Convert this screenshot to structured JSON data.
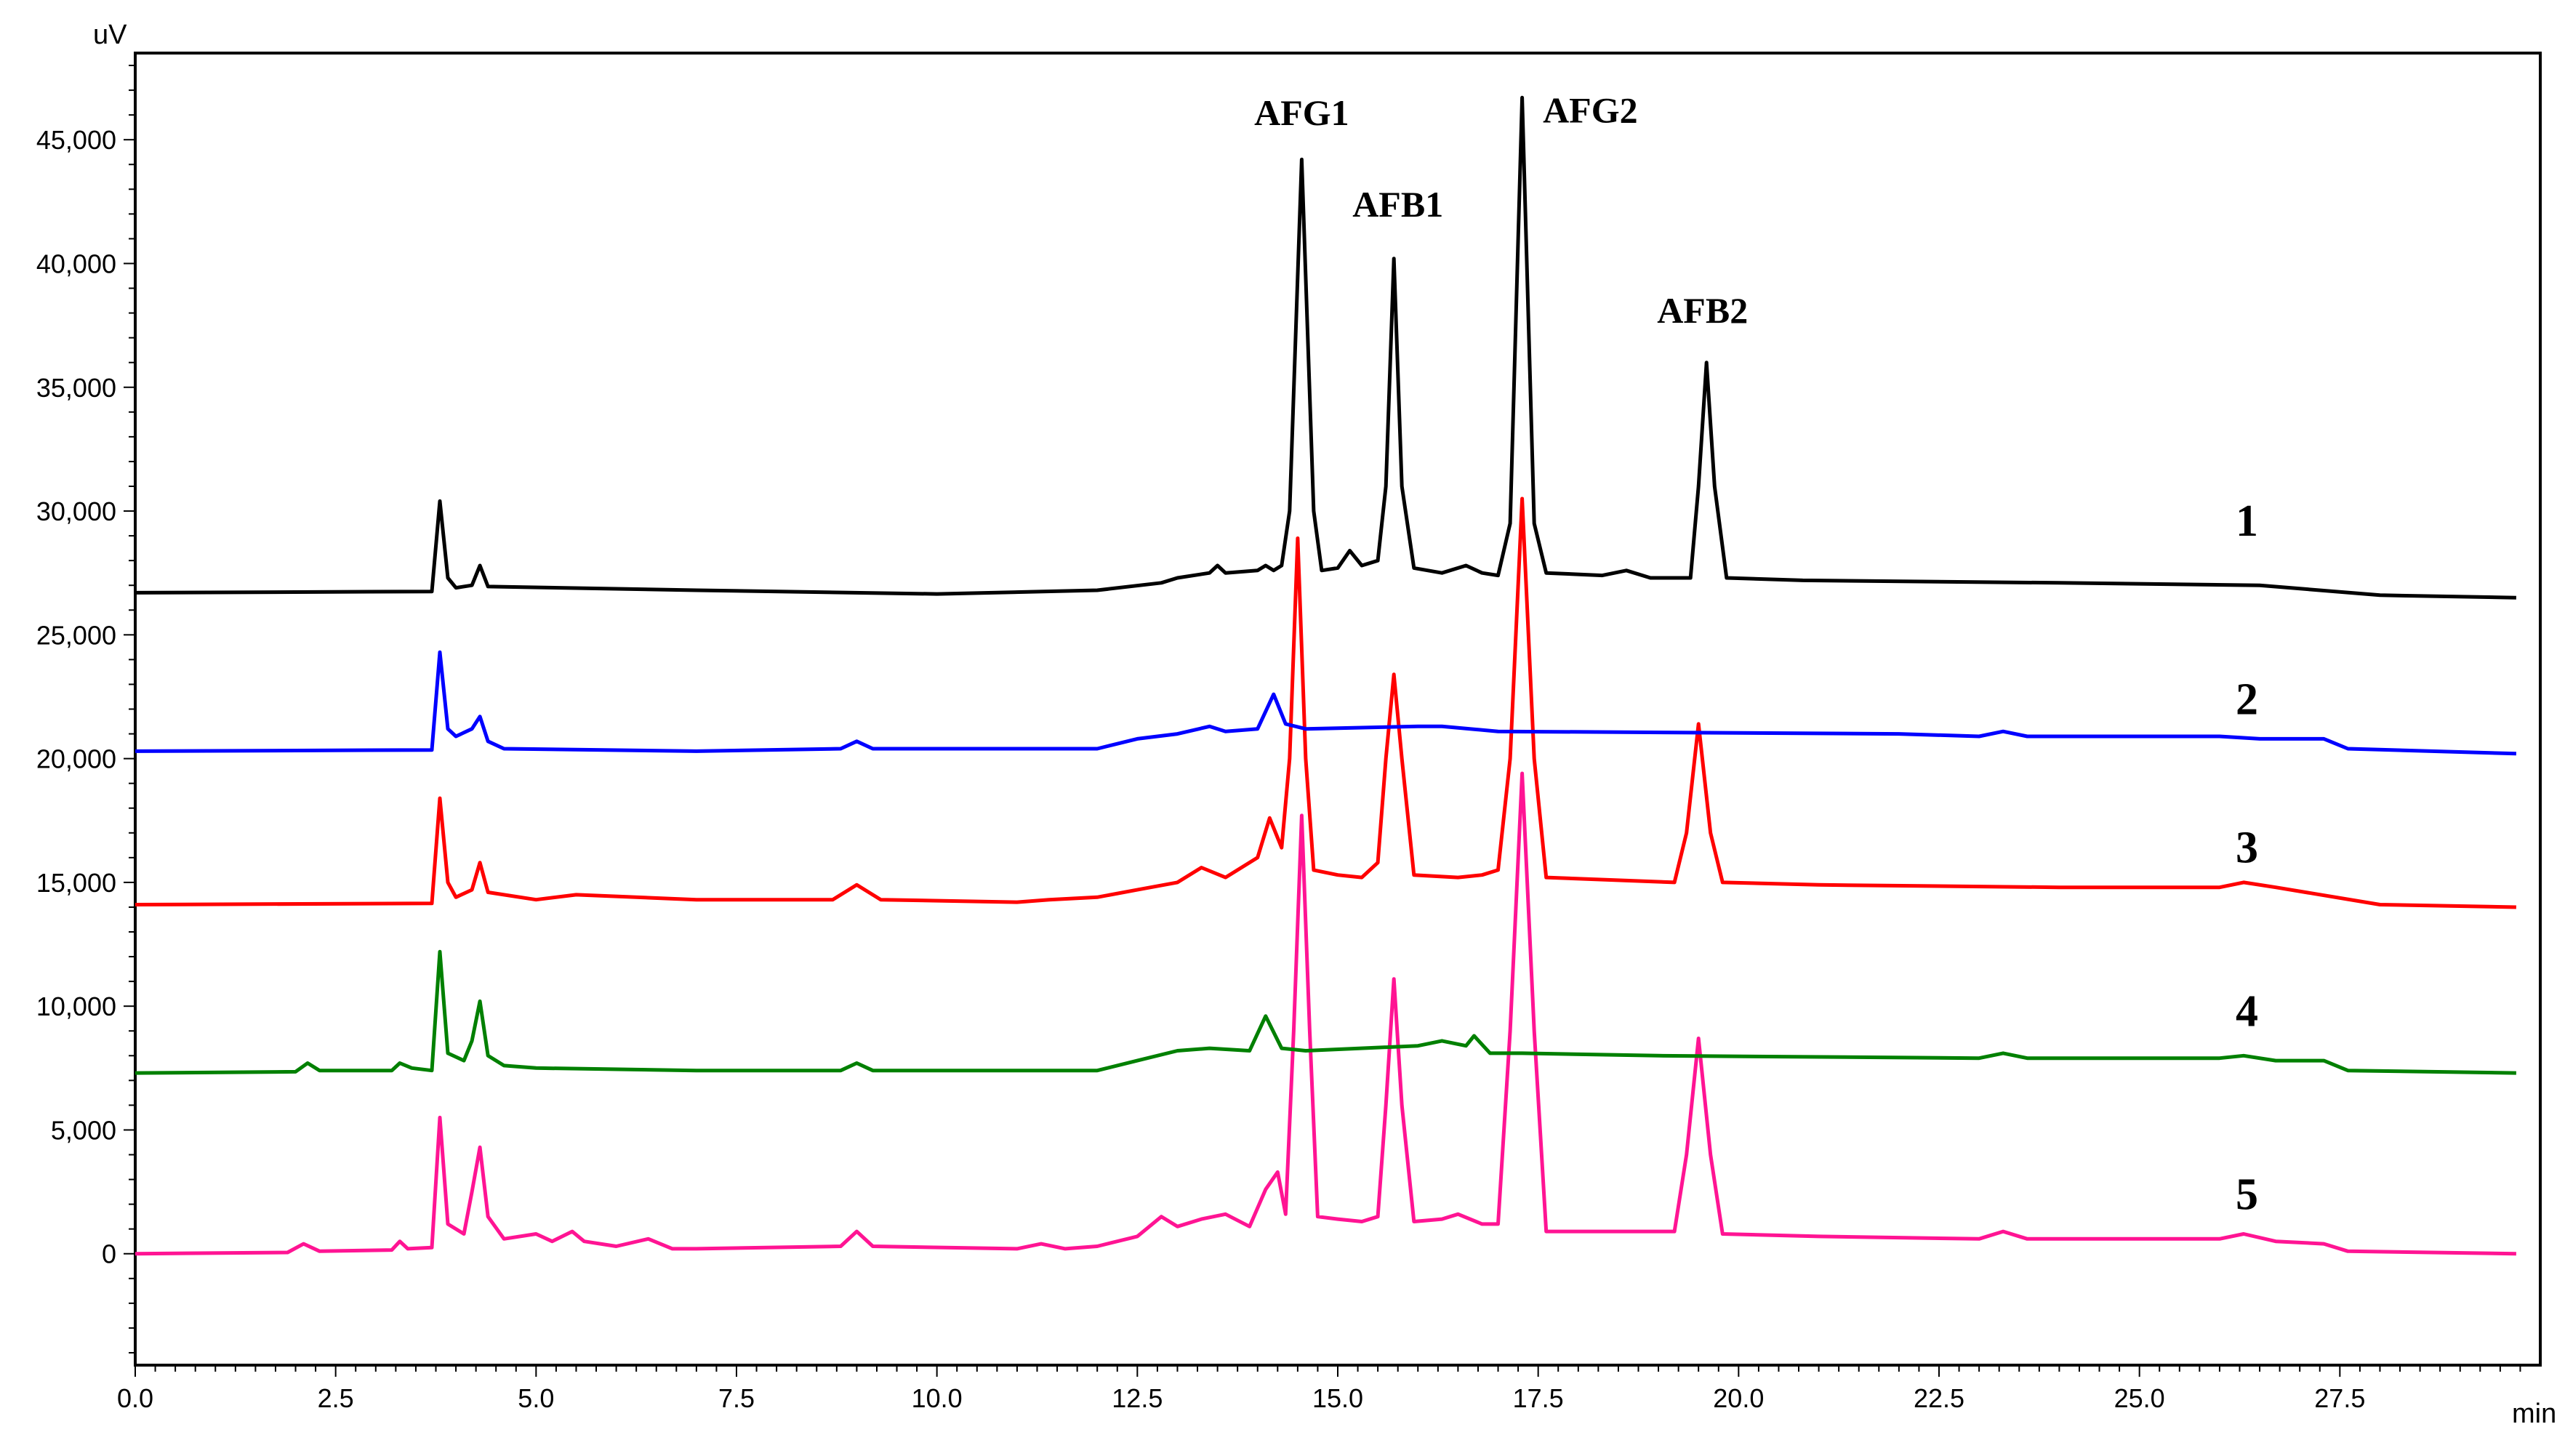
{
  "chart_data": {
    "type": "line",
    "ylabel": "uV",
    "xlabel": "min",
    "xlim": [
      0,
      30
    ],
    "ylim": [
      -4500,
      48500
    ],
    "x_ticks": [
      "0.0",
      "2.5",
      "5.0",
      "7.5",
      "10.0",
      "12.5",
      "15.0",
      "17.5",
      "20.0",
      "22.5",
      "25.0",
      "27.5"
    ],
    "y_ticks": [
      "0",
      "5,000",
      "10,000",
      "15,000",
      "20,000",
      "25,000",
      "30,000",
      "35,000",
      "40,000",
      "45,000"
    ],
    "grid": false,
    "peak_annotations": [
      {
        "text": "AFG1",
        "x": 14.55,
        "y": 45600
      },
      {
        "text": "AFB1",
        "x": 15.75,
        "y": 41900
      },
      {
        "text": "AFG2",
        "x": 18.15,
        "y": 45700
      },
      {
        "text": "AFB2",
        "x": 19.55,
        "y": 37600
      }
    ],
    "series": [
      {
        "name": "1",
        "color": "#000000",
        "label_x": 26.2,
        "label_y": 29000,
        "points": [
          [
            0,
            26700
          ],
          [
            3.7,
            26750
          ],
          [
            3.8,
            30400
          ],
          [
            3.9,
            27300
          ],
          [
            4.0,
            26900
          ],
          [
            4.2,
            27000
          ],
          [
            4.3,
            27800
          ],
          [
            4.4,
            26950
          ],
          [
            7,
            26800
          ],
          [
            10,
            26650
          ],
          [
            12,
            26800
          ],
          [
            12.8,
            27100
          ],
          [
            13.0,
            27300
          ],
          [
            13.4,
            27500
          ],
          [
            13.5,
            27800
          ],
          [
            13.6,
            27500
          ],
          [
            14.0,
            27600
          ],
          [
            14.1,
            27800
          ],
          [
            14.2,
            27600
          ],
          [
            14.3,
            27800
          ],
          [
            14.4,
            30000
          ],
          [
            14.55,
            44200
          ],
          [
            14.7,
            30000
          ],
          [
            14.8,
            27600
          ],
          [
            15.0,
            27700
          ],
          [
            15.15,
            28400
          ],
          [
            15.3,
            27800
          ],
          [
            15.5,
            28000
          ],
          [
            15.6,
            31000
          ],
          [
            15.7,
            40200
          ],
          [
            15.8,
            31000
          ],
          [
            15.95,
            27700
          ],
          [
            16.3,
            27500
          ],
          [
            16.6,
            27800
          ],
          [
            16.8,
            27500
          ],
          [
            17.0,
            27400
          ],
          [
            17.15,
            29500
          ],
          [
            17.3,
            46700
          ],
          [
            17.45,
            29500
          ],
          [
            17.6,
            27500
          ],
          [
            18.3,
            27400
          ],
          [
            18.6,
            27600
          ],
          [
            18.9,
            27300
          ],
          [
            19.4,
            27300
          ],
          [
            19.5,
            31000
          ],
          [
            19.6,
            36000
          ],
          [
            19.7,
            31000
          ],
          [
            19.85,
            27300
          ],
          [
            20.8,
            27200
          ],
          [
            24,
            27100
          ],
          [
            26.5,
            27000
          ],
          [
            28.0,
            26600
          ],
          [
            29.7,
            26500
          ]
        ]
      },
      {
        "name": "2",
        "color": "#0000ff",
        "label_x": 26.2,
        "label_y": 21800,
        "points": [
          [
            0,
            20300
          ],
          [
            3.7,
            20350
          ],
          [
            3.8,
            24300
          ],
          [
            3.9,
            21200
          ],
          [
            4.0,
            20900
          ],
          [
            4.2,
            21200
          ],
          [
            4.3,
            21700
          ],
          [
            4.4,
            20700
          ],
          [
            4.6,
            20400
          ],
          [
            7,
            20300
          ],
          [
            8.8,
            20400
          ],
          [
            9.0,
            20700
          ],
          [
            9.2,
            20400
          ],
          [
            12,
            20400
          ],
          [
            12.5,
            20800
          ],
          [
            13.0,
            21000
          ],
          [
            13.4,
            21300
          ],
          [
            13.6,
            21100
          ],
          [
            14.0,
            21200
          ],
          [
            14.2,
            22600
          ],
          [
            14.35,
            21400
          ],
          [
            14.6,
            21200
          ],
          [
            16.0,
            21300
          ],
          [
            16.3,
            21300
          ],
          [
            17.0,
            21100
          ],
          [
            22,
            21000
          ],
          [
            23.0,
            20900
          ],
          [
            23.3,
            21100
          ],
          [
            23.6,
            20900
          ],
          [
            25,
            20900
          ],
          [
            26.0,
            20900
          ],
          [
            26.5,
            20800
          ],
          [
            27.3,
            20800
          ],
          [
            27.6,
            20400
          ],
          [
            29.7,
            20200
          ]
        ]
      },
      {
        "name": "3",
        "color": "#ff0000",
        "label_x": 26.2,
        "label_y": 15800,
        "points": [
          [
            0,
            14100
          ],
          [
            3.7,
            14150
          ],
          [
            3.8,
            18400
          ],
          [
            3.9,
            15000
          ],
          [
            4.0,
            14400
          ],
          [
            4.2,
            14700
          ],
          [
            4.3,
            15800
          ],
          [
            4.4,
            14600
          ],
          [
            5.0,
            14300
          ],
          [
            5.5,
            14500
          ],
          [
            7.0,
            14300
          ],
          [
            8.7,
            14300
          ],
          [
            9.0,
            14900
          ],
          [
            9.3,
            14300
          ],
          [
            11.0,
            14200
          ],
          [
            11.4,
            14300
          ],
          [
            12.0,
            14400
          ],
          [
            12.5,
            14700
          ],
          [
            13.0,
            15000
          ],
          [
            13.3,
            15600
          ],
          [
            13.6,
            15200
          ],
          [
            14.0,
            16000
          ],
          [
            14.15,
            17600
          ],
          [
            14.3,
            16400
          ],
          [
            14.4,
            20000
          ],
          [
            14.5,
            28900
          ],
          [
            14.6,
            20000
          ],
          [
            14.7,
            15500
          ],
          [
            15.0,
            15300
          ],
          [
            15.3,
            15200
          ],
          [
            15.5,
            15800
          ],
          [
            15.6,
            20000
          ],
          [
            15.7,
            23400
          ],
          [
            15.8,
            20000
          ],
          [
            15.95,
            15300
          ],
          [
            16.5,
            15200
          ],
          [
            16.8,
            15300
          ],
          [
            17.0,
            15500
          ],
          [
            17.15,
            20000
          ],
          [
            17.3,
            30500
          ],
          [
            17.45,
            20000
          ],
          [
            17.6,
            15200
          ],
          [
            19.2,
            15000
          ],
          [
            19.35,
            17000
          ],
          [
            19.5,
            21400
          ],
          [
            19.65,
            17000
          ],
          [
            19.8,
            15000
          ],
          [
            21,
            14900
          ],
          [
            24,
            14800
          ],
          [
            26.0,
            14800
          ],
          [
            26.3,
            15000
          ],
          [
            26.7,
            14800
          ],
          [
            28,
            14100
          ],
          [
            29.7,
            14000
          ]
        ]
      },
      {
        "name": "4",
        "color": "#008000",
        "label_x": 26.2,
        "label_y": 9200,
        "points": [
          [
            0,
            7300
          ],
          [
            2.0,
            7350
          ],
          [
            2.15,
            7700
          ],
          [
            2.3,
            7400
          ],
          [
            3.2,
            7400
          ],
          [
            3.3,
            7700
          ],
          [
            3.45,
            7500
          ],
          [
            3.7,
            7400
          ],
          [
            3.8,
            12200
          ],
          [
            3.9,
            8100
          ],
          [
            4.1,
            7800
          ],
          [
            4.2,
            8600
          ],
          [
            4.3,
            10200
          ],
          [
            4.4,
            8000
          ],
          [
            4.6,
            7600
          ],
          [
            5.0,
            7500
          ],
          [
            7,
            7400
          ],
          [
            8.8,
            7400
          ],
          [
            9.0,
            7700
          ],
          [
            9.2,
            7400
          ],
          [
            12,
            7400
          ],
          [
            12.5,
            7800
          ],
          [
            13.0,
            8200
          ],
          [
            13.4,
            8300
          ],
          [
            13.9,
            8200
          ],
          [
            14.1,
            9600
          ],
          [
            14.3,
            8300
          ],
          [
            14.6,
            8200
          ],
          [
            16.0,
            8400
          ],
          [
            16.3,
            8600
          ],
          [
            16.6,
            8400
          ],
          [
            16.7,
            8800
          ],
          [
            16.9,
            8100
          ],
          [
            17.3,
            8100
          ],
          [
            19,
            8000
          ],
          [
            23.0,
            7900
          ],
          [
            23.3,
            8100
          ],
          [
            23.6,
            7900
          ],
          [
            26.0,
            7900
          ],
          [
            26.3,
            8000
          ],
          [
            26.7,
            7800
          ],
          [
            27.3,
            7800
          ],
          [
            27.6,
            7400
          ],
          [
            29.7,
            7300
          ]
        ]
      },
      {
        "name": "5",
        "color": "#ff1493",
        "label_x": 26.2,
        "label_y": 1800,
        "points": [
          [
            0,
            0
          ],
          [
            1.9,
            50
          ],
          [
            2.1,
            400
          ],
          [
            2.3,
            100
          ],
          [
            3.2,
            150
          ],
          [
            3.3,
            500
          ],
          [
            3.4,
            200
          ],
          [
            3.7,
            250
          ],
          [
            3.8,
            5500
          ],
          [
            3.9,
            1200
          ],
          [
            4.1,
            800
          ],
          [
            4.2,
            2500
          ],
          [
            4.3,
            4300
          ],
          [
            4.4,
            1500
          ],
          [
            4.6,
            600
          ],
          [
            5.0,
            800
          ],
          [
            5.2,
            500
          ],
          [
            5.45,
            900
          ],
          [
            5.6,
            500
          ],
          [
            6.0,
            300
          ],
          [
            6.4,
            600
          ],
          [
            6.7,
            200
          ],
          [
            7.0,
            200
          ],
          [
            8.8,
            300
          ],
          [
            9.0,
            900
          ],
          [
            9.2,
            300
          ],
          [
            11.0,
            200
          ],
          [
            11.3,
            400
          ],
          [
            11.6,
            200
          ],
          [
            12.0,
            300
          ],
          [
            12.5,
            700
          ],
          [
            12.8,
            1500
          ],
          [
            13.0,
            1100
          ],
          [
            13.3,
            1400
          ],
          [
            13.6,
            1600
          ],
          [
            13.9,
            1100
          ],
          [
            14.1,
            2600
          ],
          [
            14.25,
            3300
          ],
          [
            14.35,
            1600
          ],
          [
            14.45,
            9000
          ],
          [
            14.55,
            17700
          ],
          [
            14.65,
            9000
          ],
          [
            14.75,
            1500
          ],
          [
            15.0,
            1400
          ],
          [
            15.3,
            1300
          ],
          [
            15.5,
            1500
          ],
          [
            15.6,
            6000
          ],
          [
            15.7,
            11100
          ],
          [
            15.8,
            6000
          ],
          [
            15.95,
            1300
          ],
          [
            16.3,
            1400
          ],
          [
            16.5,
            1600
          ],
          [
            16.8,
            1200
          ],
          [
            17.0,
            1200
          ],
          [
            17.15,
            9000
          ],
          [
            17.3,
            19400
          ],
          [
            17.45,
            9000
          ],
          [
            17.6,
            900
          ],
          [
            19.2,
            900
          ],
          [
            19.35,
            4000
          ],
          [
            19.5,
            8700
          ],
          [
            19.65,
            4000
          ],
          [
            19.8,
            800
          ],
          [
            21,
            700
          ],
          [
            23.0,
            600
          ],
          [
            23.3,
            900
          ],
          [
            23.6,
            600
          ],
          [
            26.0,
            600
          ],
          [
            26.3,
            800
          ],
          [
            26.7,
            500
          ],
          [
            27.3,
            400
          ],
          [
            27.6,
            100
          ],
          [
            29.7,
            0
          ]
        ]
      }
    ]
  }
}
